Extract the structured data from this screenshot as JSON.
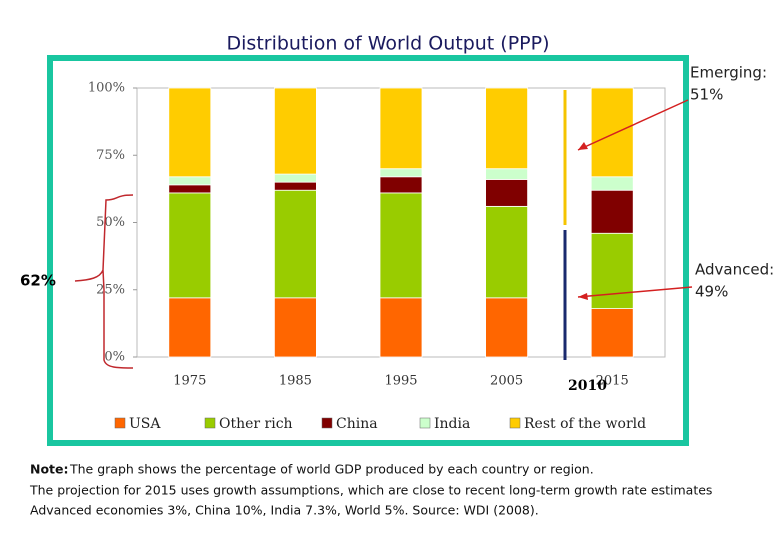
{
  "chart_data": {
    "type": "bar",
    "stacked": true,
    "title": "Distribution of World Output (PPP)",
    "categories": [
      "1975",
      "1985",
      "1995",
      "2005",
      "2015"
    ],
    "series": [
      {
        "name": "USA",
        "color": "#ff6600",
        "values": [
          22,
          22,
          22,
          22,
          18
        ]
      },
      {
        "name": "Other rich",
        "color": "#99cc00",
        "values": [
          39,
          40,
          39,
          34,
          28
        ]
      },
      {
        "name": "China",
        "color": "#800000",
        "values": [
          3,
          3,
          6,
          10,
          16
        ]
      },
      {
        "name": "India",
        "color": "#ccffcc",
        "values": [
          3,
          3,
          3,
          4,
          5
        ]
      },
      {
        "name": "Rest of the world",
        "color": "#ffcc00",
        "values": [
          33,
          32,
          30,
          30,
          33
        ]
      }
    ],
    "ylim": [
      0,
      100
    ],
    "yticks": [
      {
        "value": 0,
        "label": "0%"
      },
      {
        "value": 25,
        "label": "25%"
      },
      {
        "value": 50,
        "label": "50%"
      },
      {
        "value": 75,
        "label": "75%"
      },
      {
        "value": 100,
        "label": "100%"
      }
    ],
    "legend": "bottom",
    "annotations": {
      "emerging": [
        "Emerging:",
        "51%"
      ],
      "advanced": [
        "Advanced:",
        "49%"
      ],
      "bracket": "62%",
      "year": "2010"
    }
  },
  "note": {
    "label": "Note:",
    "lines": [
      "The graph shows the percentage of world GDP produced by each country or region.",
      "The projection for 2015 uses growth assumptions, which are close to recent long-term growth rate estimates",
      "Advanced economies 3%, China 10%, India 7.3%, World 5%. Source: WDI (2008)."
    ]
  }
}
